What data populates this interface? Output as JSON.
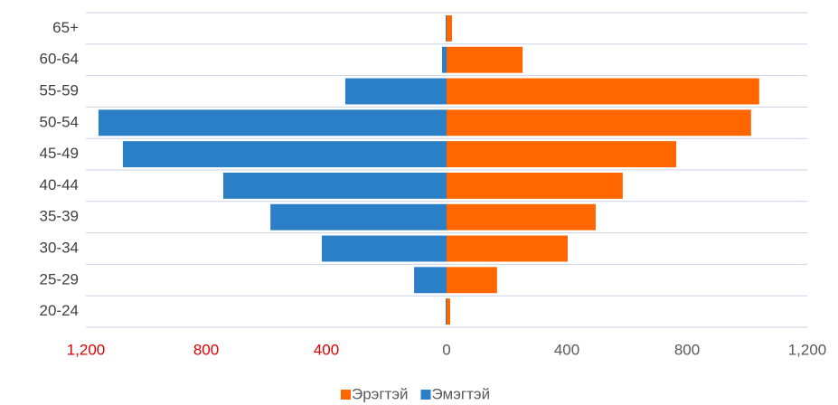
{
  "chart_data": {
    "type": "bar",
    "orientation": "horizontal",
    "stacked": false,
    "categories": [
      "65+",
      "60-64",
      "55-59",
      "50-54",
      "45-49",
      "40-44",
      "35-39",
      "30-34",
      "25-29",
      "20-24"
    ],
    "series": [
      {
        "name": "Эрэгтэй",
        "color": "#ff6600",
        "values": [
          18,
          253,
          1040,
          1013,
          764,
          586,
          496,
          403,
          168,
          12
        ]
      },
      {
        "name": "Эмэгтэй",
        "color": "#2b7fc7",
        "values": [
          -3,
          -15,
          -337,
          -1158,
          -1077,
          -743,
          -586,
          -415,
          -108,
          -3
        ]
      }
    ],
    "xlim": [
      -1200,
      1200
    ],
    "xticks": [
      {
        "value": -1200,
        "label": "1,200"
      },
      {
        "value": -800,
        "label": "800"
      },
      {
        "value": -400,
        "label": "400"
      },
      0,
      400,
      800,
      {
        "value": 1200,
        "label": "1,200"
      }
    ],
    "negative_tick_label_color": "#e00000",
    "tick_label_color": "#595959",
    "legend": "bottom"
  }
}
